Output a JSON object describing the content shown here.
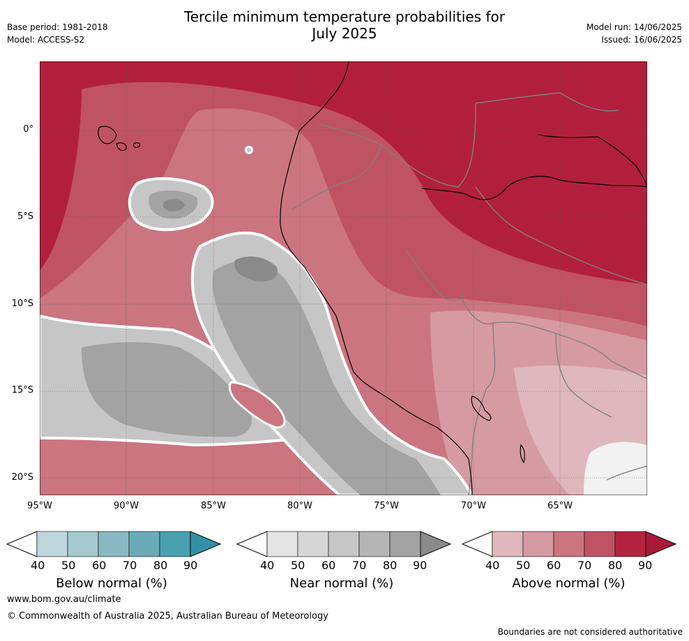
{
  "header": {
    "title_line1": "Tercile minimum temperature probabilities for",
    "title_line2": "July 2025",
    "base_period": "Base period: 1981-2018",
    "model": "Model: ACCESS-S2",
    "model_run": "Model run: 14/06/2025",
    "issued": "Issued: 16/06/2025"
  },
  "map": {
    "lat_labels": [
      "0°",
      "5°S",
      "10°S",
      "15°S",
      "20°S"
    ],
    "lon_labels": [
      "95°W",
      "90°W",
      "85°W",
      "80°W",
      "75°W",
      "70°W",
      "65°W"
    ],
    "colors": {
      "above": [
        "#dfb8bd",
        "#d69aa2",
        "#cb7580",
        "#c05363",
        "#b4233d",
        "#a81a36"
      ],
      "near": [
        "#e4e4e4",
        "#d6d6d6",
        "#c6c6c6",
        "#b5b5b5",
        "#a3a3a3",
        "#8a8a8a"
      ],
      "below": [
        "#bdd6dc",
        "#a6c8cf",
        "#89b9c3",
        "#6aaab6",
        "#48a0b0",
        "#3391a6"
      ],
      "ocean_base": "#b21f3c",
      "coast": "#000000",
      "border": "#808080"
    }
  },
  "legend": {
    "below": {
      "title": "Below normal (%)",
      "ticks": [
        "40",
        "50",
        "60",
        "70",
        "80",
        "90"
      ]
    },
    "near": {
      "title": "Near normal (%)",
      "ticks": [
        "40",
        "50",
        "60",
        "70",
        "80",
        "90"
      ]
    },
    "above": {
      "title": "Above normal (%)",
      "ticks": [
        "40",
        "50",
        "60",
        "70",
        "80",
        "90"
      ]
    }
  },
  "footer": {
    "website": "www.bom.gov.au/climate",
    "copyright": "© Commonwealth of Australia 2025, Australian Bureau of Meteorology",
    "disclaimer": "Boundaries are not considered authoritative"
  }
}
